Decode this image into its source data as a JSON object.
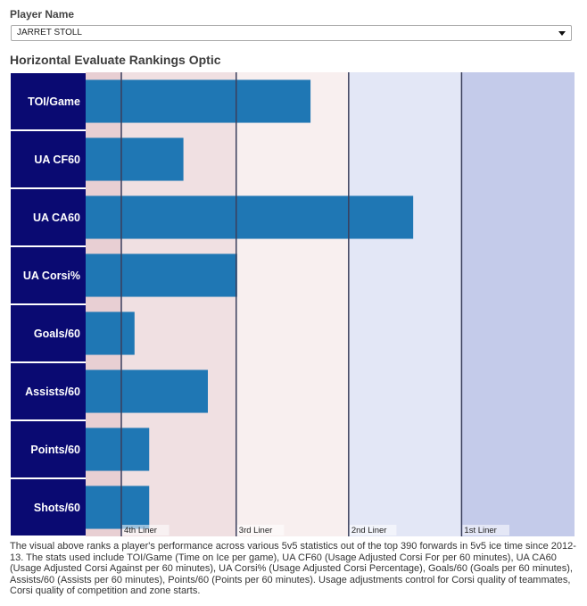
{
  "selector": {
    "label": "Player Name",
    "value": "JARRET STOLL"
  },
  "chart_title": "Horizontal Evaluate Rankings Optic",
  "description": "The visual above ranks a player's performance across various 5v5 statistics out of the top 390 forwards in 5v5 ice time since 2012-13. The stats used include TOI/Game (Time on Ice per game), UA CF60 (Usage Adjusted Corsi For per 60 minutes), UA CA60 (Usage Adjusted Corsi Against per 60 minutes), UA Corsi% (Usage Adjusted Corsi Percentage), Goals/60 (Goals per 60 minutes), Assists/60 (Assists per 60 minutes), Points/60 (Points per 60 minutes). Usage adjustments control for Corsi quality of teammates, Corsi quality of competition and zone starts.",
  "chart_data": {
    "type": "bar",
    "orientation": "horizontal",
    "title": "Horizontal Evaluate Rankings Optic",
    "categories": [
      "TOI/Game",
      "UA CF60",
      "UA CA60",
      "UA Corsi%",
      "Goals/60",
      "Assists/60",
      "Points/60",
      "Shots/60"
    ],
    "values": [
      0.46,
      0.2,
      0.67,
      0.31,
      0.1,
      0.25,
      0.13,
      0.13
    ],
    "xlim": [
      0,
      1
    ],
    "bands": [
      {
        "label": "4th Liner",
        "start": 0.0,
        "end": 0.308,
        "color": "#f0e0e2"
      },
      {
        "label": "3rd Liner",
        "start": 0.308,
        "end": 0.538,
        "color": "#f8efef"
      },
      {
        "label": "2nd Liner",
        "start": 0.538,
        "end": 0.769,
        "color": "#e3e7f6"
      },
      {
        "label": "1st Liner",
        "start": 0.769,
        "end": 1.0,
        "color": "#c4cbea"
      }
    ],
    "band_edge_color": "#e8cfd3",
    "bar_color": "#1f77b4",
    "label_bg_color": "#0a0a72",
    "divider_color": "#3a3f5c"
  }
}
